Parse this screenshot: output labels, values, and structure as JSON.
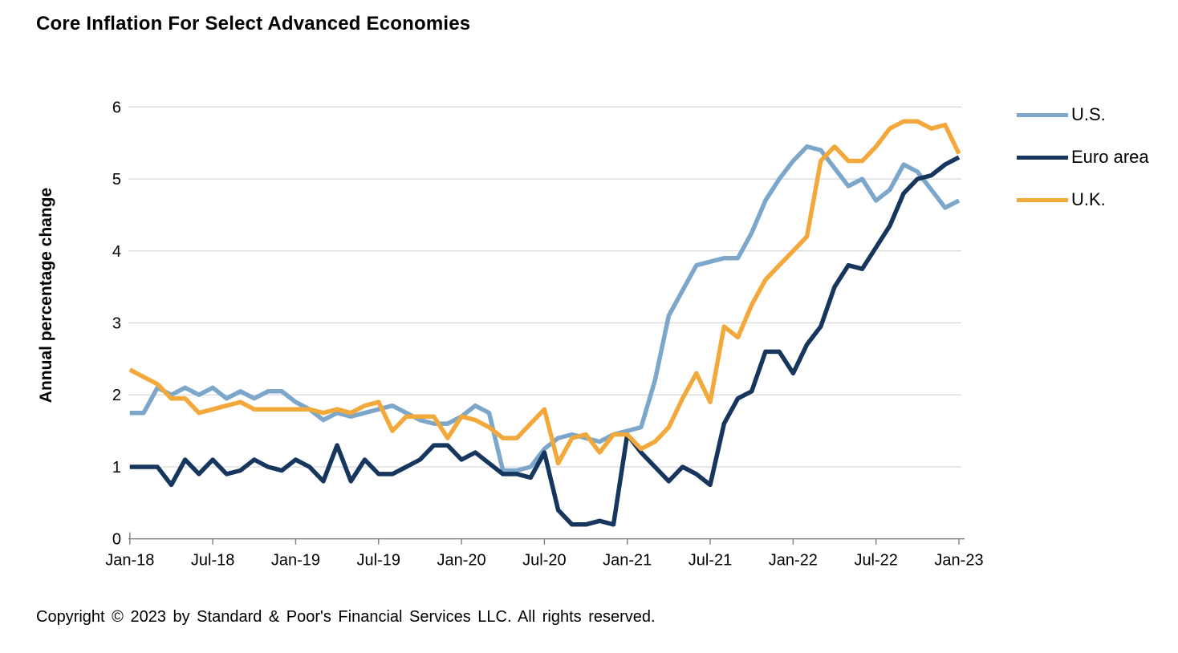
{
  "title": "Core Inflation For Select Advanced Economies",
  "copyright": "Copyright © 2023 by Standard & Poor's Financial Services LLC. All rights reserved.",
  "colors": {
    "us_line": "#7CA7CB",
    "euro_line": "#17365D",
    "uk_line": "#F3A83B",
    "gridline": "#D9D9D9",
    "axis": "#7F7F7F",
    "text": "#000000"
  },
  "chart_data": {
    "type": "line",
    "title": "Core Inflation For Select Advanced Economies",
    "xlabel": "",
    "ylabel": "Annual percentage change",
    "ylim": [
      0,
      6
    ],
    "yticks": [
      0,
      1,
      2,
      3,
      4,
      5,
      6
    ],
    "grid": "horizontal",
    "legend_position": "right",
    "frequency": "monthly",
    "x_start": "Jan-18",
    "x_end": "Jan-23",
    "x_tick_labels": [
      "Jan-18",
      "Jul-18",
      "Jan-19",
      "Jul-19",
      "Jan-20",
      "Jul-20",
      "Jan-21",
      "Jul-21",
      "Jan-22",
      "Jul-22",
      "Jan-23"
    ],
    "x_tick_month_indices": [
      0,
      6,
      12,
      18,
      24,
      30,
      36,
      42,
      48,
      54,
      60
    ],
    "series": [
      {
        "name": "U.S.",
        "color": "#7CA7CB",
        "values": [
          1.75,
          1.75,
          2.1,
          2.0,
          2.1,
          2.0,
          2.1,
          1.95,
          2.05,
          1.95,
          2.05,
          2.05,
          1.9,
          1.8,
          1.65,
          1.75,
          1.7,
          1.75,
          1.8,
          1.85,
          1.75,
          1.65,
          1.6,
          1.6,
          1.7,
          1.85,
          1.75,
          0.95,
          0.95,
          1.0,
          1.25,
          1.4,
          1.45,
          1.4,
          1.35,
          1.45,
          1.5,
          1.55,
          2.2,
          3.1,
          3.45,
          3.8,
          3.85,
          3.9,
          3.9,
          4.25,
          4.7,
          5.0,
          5.25,
          5.45,
          5.4,
          5.15,
          4.9,
          5.0,
          4.7,
          4.85,
          5.2,
          5.1,
          4.85,
          4.6,
          4.7
        ]
      },
      {
        "name": "Euro area",
        "color": "#17365D",
        "values": [
          1.0,
          1.0,
          1.0,
          0.75,
          1.1,
          0.9,
          1.1,
          0.9,
          0.95,
          1.1,
          1.0,
          0.95,
          1.1,
          1.0,
          0.8,
          1.3,
          0.8,
          1.1,
          0.9,
          0.9,
          1.0,
          1.1,
          1.3,
          1.3,
          1.1,
          1.2,
          1.05,
          0.9,
          0.9,
          0.85,
          1.2,
          0.4,
          0.2,
          0.2,
          0.25,
          0.2,
          1.45,
          1.2,
          1.0,
          0.8,
          1.0,
          0.9,
          0.75,
          1.6,
          1.95,
          2.05,
          2.6,
          2.6,
          2.3,
          2.7,
          2.95,
          3.5,
          3.8,
          3.75,
          4.05,
          4.35,
          4.8,
          5.0,
          5.05,
          5.2,
          5.3
        ]
      },
      {
        "name": "U.K.",
        "color": "#F3A83B",
        "values": [
          2.35,
          2.25,
          2.15,
          1.95,
          1.95,
          1.75,
          1.8,
          1.85,
          1.9,
          1.8,
          1.8,
          1.8,
          1.8,
          1.8,
          1.75,
          1.8,
          1.75,
          1.85,
          1.9,
          1.5,
          1.7,
          1.7,
          1.7,
          1.4,
          1.7,
          1.65,
          1.55,
          1.4,
          1.4,
          1.6,
          1.8,
          1.05,
          1.4,
          1.45,
          1.2,
          1.45,
          1.45,
          1.25,
          1.35,
          1.55,
          1.95,
          2.3,
          1.9,
          2.95,
          2.8,
          3.25,
          3.6,
          3.8,
          4.0,
          4.2,
          5.25,
          5.45,
          5.25,
          5.25,
          5.45,
          5.7,
          5.8,
          5.8,
          5.7,
          5.75,
          5.35
        ]
      }
    ]
  }
}
